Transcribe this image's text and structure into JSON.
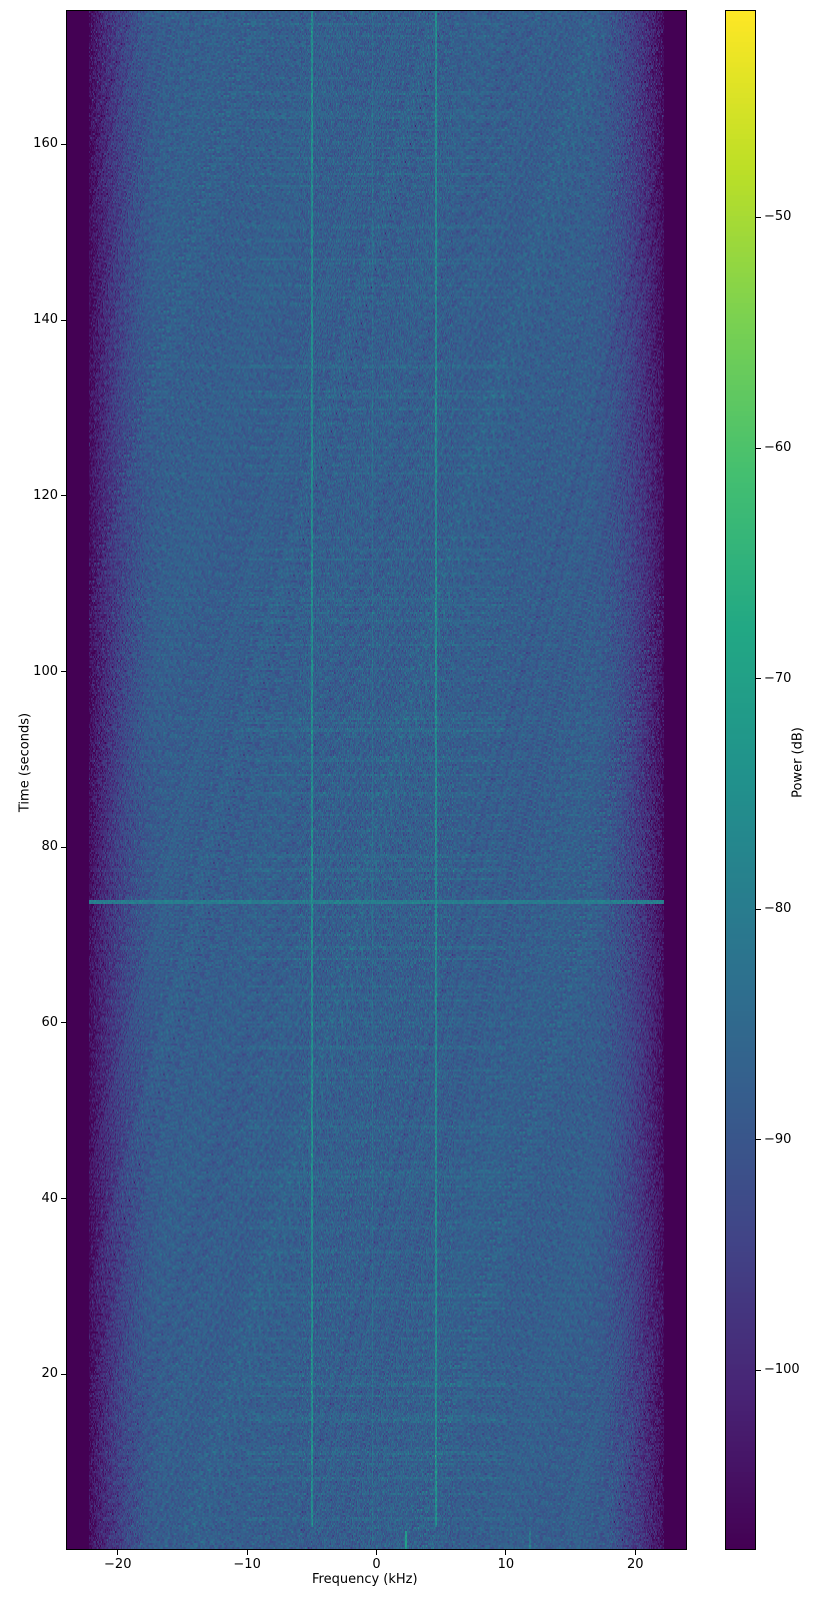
{
  "chart_data": {
    "type": "heatmap",
    "title": "",
    "xlabel": "Frequency (kHz)",
    "ylabel": "Time (seconds)",
    "colorbar_label": "Power (dB)",
    "colormap": "viridis",
    "xlim": [
      -24,
      24
    ],
    "ylim": [
      0,
      175.3
    ],
    "clim": [
      -107.8,
      -41.0
    ],
    "xticks": [
      -20,
      -10,
      0,
      10,
      20
    ],
    "xtick_labels": [
      "−20",
      "−10",
      "0",
      "10",
      "20"
    ],
    "yticks": [
      20,
      40,
      60,
      80,
      100,
      120,
      140,
      160
    ],
    "ytick_labels": [
      "20",
      "40",
      "60",
      "80",
      "100",
      "120",
      "140",
      "160"
    ],
    "cticks": [
      -100,
      -90,
      -80,
      -70,
      -60,
      -50
    ],
    "ctick_labels": [
      "−100",
      "−90",
      "−80",
      "−70",
      "−60",
      "−50"
    ],
    "noise_floor_db": -88,
    "band_edge_khz": 22,
    "out_of_band_db": -108,
    "tones": [
      {
        "freq_khz": -5.0,
        "power_db": -76,
        "t_start": 2.5,
        "t_end": 175.3
      },
      {
        "freq_khz": 4.6,
        "power_db": -76,
        "t_start": 2.5,
        "t_end": 175.3
      },
      {
        "freq_khz": -0.3,
        "power_db": -84,
        "t_start": 0,
        "t_end": 175.3
      },
      {
        "freq_khz": 2.3,
        "power_db": -72,
        "t_start": 0,
        "t_end": 2
      },
      {
        "freq_khz": 11.9,
        "power_db": -72,
        "t_start": 0,
        "t_end": 2
      }
    ],
    "bursts": [
      {
        "t": 73.8,
        "power_db": -80
      }
    ],
    "grid": false
  }
}
